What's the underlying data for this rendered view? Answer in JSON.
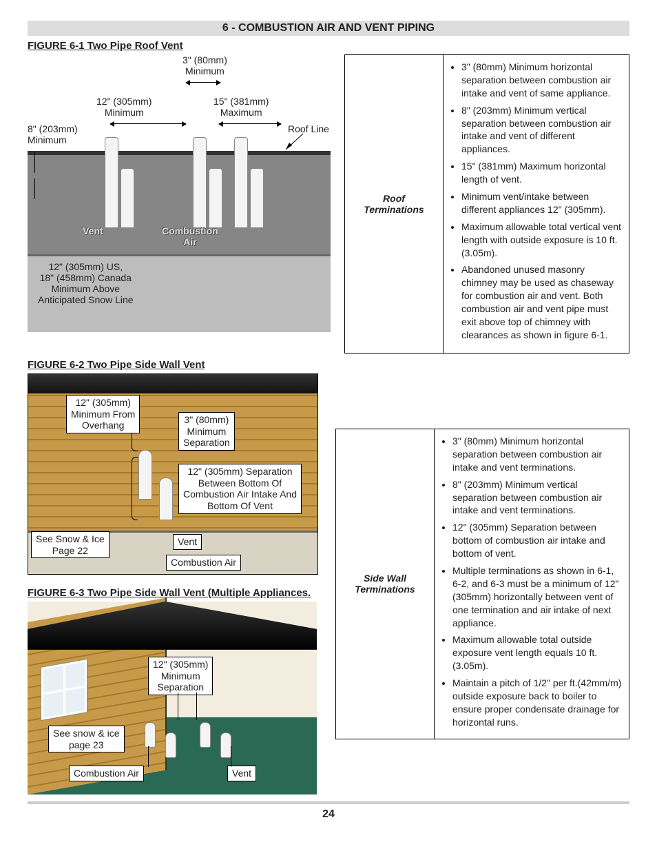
{
  "section_title": "6 - COMBUSTION AIR AND VENT PIPING",
  "page_number": "24",
  "fig61": {
    "title": "FIGURE 6-1  Two Pipe Roof Vent",
    "labels": {
      "top_min": "3\" (80mm)\nMinimum",
      "left_min": "12\" (305mm)\nMinimum",
      "right_max": "15\" (381mm)\nMaximum",
      "vert_min": "8\" (203mm)\nMinimum",
      "roof_line": "Roof Line",
      "vent": "Vent",
      "combustion_air": "Combustion\nAir",
      "snow": "12\" (305mm) US,\n18\" (458mm) Canada\nMinimum Above\nAnticipated Snow Line"
    }
  },
  "fig62": {
    "title": "FIGURE 6-2  Two Pipe Side Wall Vent",
    "labels": {
      "overhang": "12\" (305mm)\nMinimum From\nOverhang",
      "sep": "3\" (80mm)\nMinimum\nSeparation",
      "between": "12\" (305mm) Separation\nBetween Bottom Of\nCombustion Air Intake And\nBottom Of Vent",
      "snow": "See Snow & Ice\nPage 22",
      "vent": "Vent",
      "ca": "Combustion Air"
    }
  },
  "fig63": {
    "title": "FIGURE 6-3 Two Pipe Side Wall Vent (Multiple Appliances.",
    "labels": {
      "sep": "12\" (305mm)\nMinimum\nSeparation",
      "snow": "See snow & ice\npage 23",
      "vent": "Vent",
      "ca": "Combustion Air"
    }
  },
  "table1": {
    "heading": "Roof\nTerminations",
    "bullets": [
      "3\" (80mm) Minimum horizontal separation between combustion air intake and vent of same appliance.",
      "8\" (203mm) Minimum vertical separation between combustion air intake and vent of different appliances.",
      "15\" (381mm) Maximum horizontal length of vent.",
      "Minimum vent/intake between different appliances 12\" (305mm).",
      "Maximum allowable total vertical vent length with outside exposure is 10 ft.(3.05m).",
      "Abandoned unused masonry chimney may be used as chaseway for combustion air and vent. Both combustion air and vent pipe must exit above top of chimney with clearances as shown in figure 6-1."
    ]
  },
  "table2": {
    "heading": "Side Wall\nTerminations",
    "bullets": [
      "3\" (80mm) Minimum horizontal separation between combustion air intake and vent terminations.",
      "8\" (203mm) Minimum vertical separation between combustion air intake and vent terminations.",
      "12\" (305mm) Separation between bottom of combustion air intake and bottom of vent.",
      "Multiple terminations as shown in 6-1, 6-2, and 6-3 must be a minimum of 12\" (305mm) horizontally between vent of one termination and air intake of next appliance.",
      "Maximum allowable total outside exposure vent length equals 10 ft.(3.05m).",
      "Maintain a pitch of 1/2\" per ft.(42mm/m) outside exposure back to boiler to ensure proper condensate drainage for horizontal runs."
    ]
  }
}
